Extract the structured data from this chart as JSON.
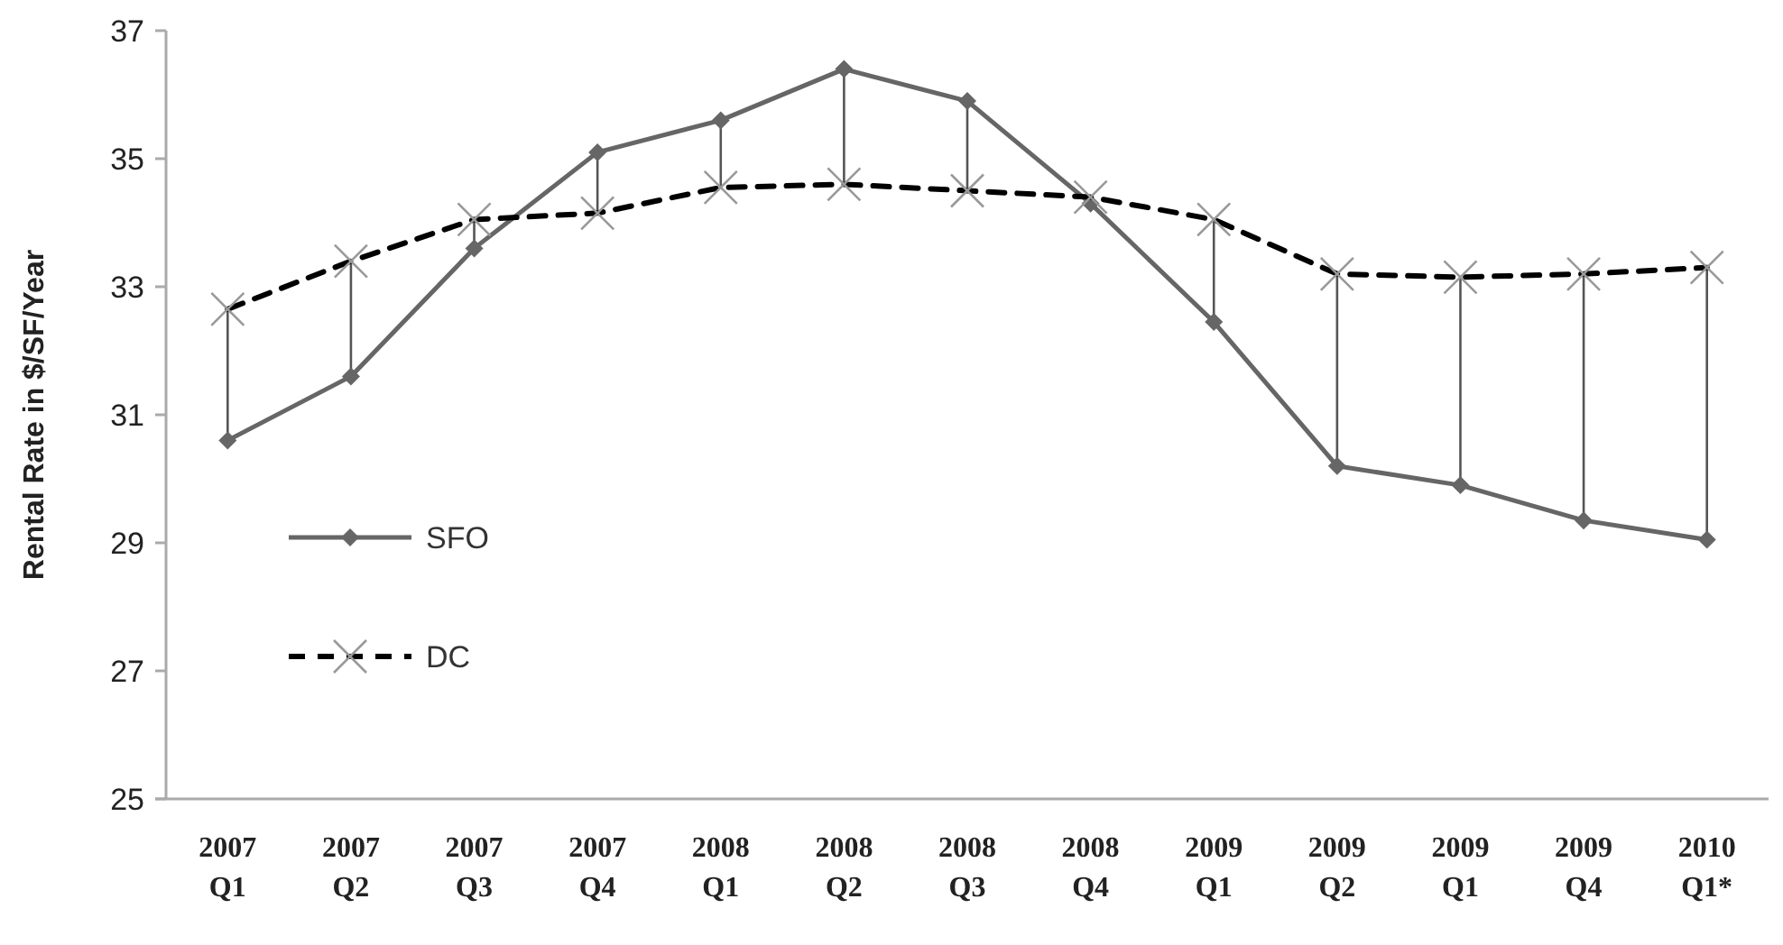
{
  "chart_data": {
    "type": "line",
    "ylabel": "Rental Rate in $/SF/Year",
    "categories": [
      "2007 Q1",
      "2007 Q2",
      "2007 Q3",
      "2007 Q4",
      "2008 Q1",
      "2008 Q2",
      "2008 Q3",
      "2008 Q4",
      "2009 Q1",
      "2009 Q2",
      "2009 Q1",
      "2009 Q4",
      "2010 Q1*"
    ],
    "series": [
      {
        "name": "SFO",
        "color": "#666666",
        "marker": "diamond",
        "line_style": "solid",
        "values": [
          30.6,
          31.6,
          33.6,
          35.1,
          35.6,
          36.4,
          35.9,
          34.3,
          32.45,
          30.2,
          29.9,
          29.35,
          29.05
        ]
      },
      {
        "name": "DC",
        "color": "#000000",
        "marker": "cross",
        "line_style": "dashed",
        "values": [
          32.65,
          33.4,
          34.05,
          34.15,
          34.55,
          34.6,
          34.5,
          34.4,
          34.05,
          33.2,
          33.15,
          33.2,
          33.3
        ]
      }
    ],
    "ylim": [
      25,
      37
    ],
    "yticks": [
      25,
      27,
      29,
      31,
      33,
      35,
      37
    ],
    "grid": false,
    "legend": "left"
  }
}
